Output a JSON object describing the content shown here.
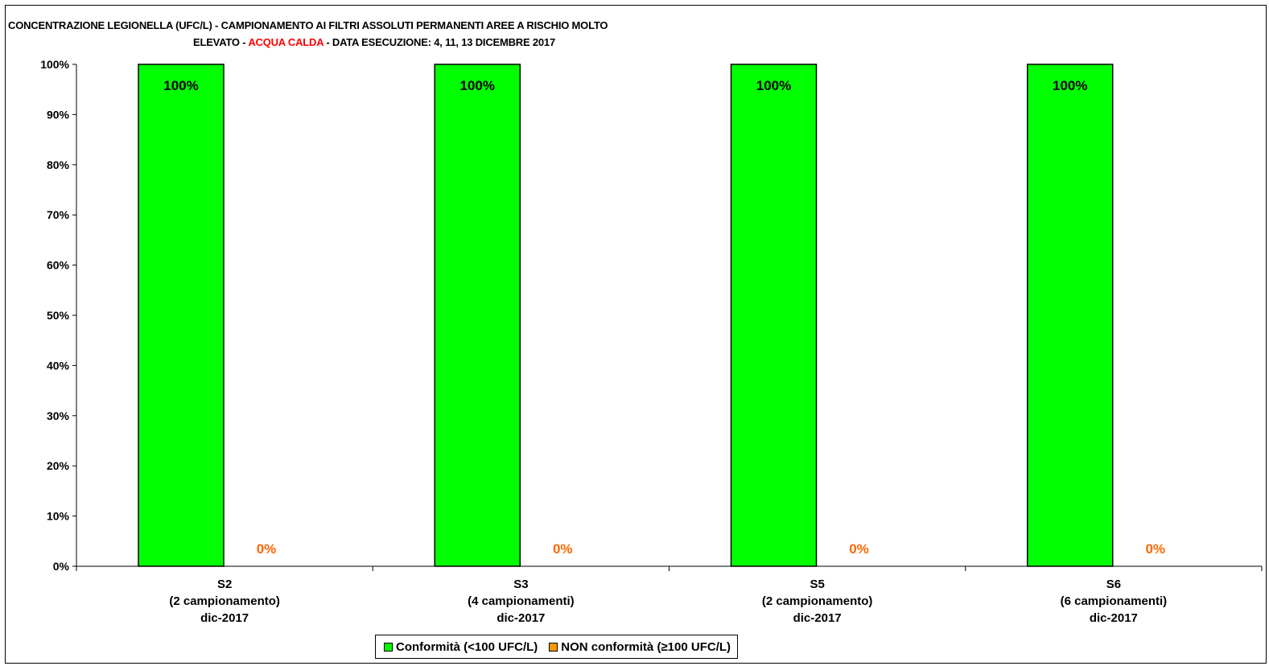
{
  "title": {
    "line1": "CONCENTRAZIONE LEGIONELLA (UFC/L) - CAMPIONAMENTO AI FILTRI ASSOLUTI PERMANENTI AREE A RISCHIO MOLTO",
    "line2_prefix": "ELEVATO - ",
    "line2_highlight": "ACQUA CALDA",
    "line2_suffix": " - DATA ESECUZIONE: 4, 11, 13 DICEMBRE 2017"
  },
  "colors": {
    "conforme": "#00ff00",
    "non_conforme": "#ff9900",
    "non_conforme_label": "#ff6600",
    "title_highlight": "#ff0000"
  },
  "chart_data": {
    "type": "bar",
    "categories": [
      [
        "S2",
        "(2 campionamento)",
        "dic-2017"
      ],
      [
        "S3",
        "(4 campionamenti)",
        "dic-2017"
      ],
      [
        "S5",
        "(2 campionamento)",
        "dic-2017"
      ],
      [
        "S6",
        "(6 campionamenti)",
        "dic-2017"
      ]
    ],
    "series": [
      {
        "name": "Conformità (<100 UFC/L)",
        "values": [
          100,
          100,
          100,
          100
        ],
        "labels": [
          "100%",
          "100%",
          "100%",
          "100%"
        ]
      },
      {
        "name": "NON conformità (≥100 UFC/L)",
        "values": [
          0,
          0,
          0,
          0
        ],
        "labels": [
          "0%",
          "0%",
          "0%",
          "0%"
        ]
      }
    ],
    "yticks": [
      "0%",
      "10%",
      "20%",
      "30%",
      "40%",
      "50%",
      "60%",
      "70%",
      "80%",
      "90%",
      "100%"
    ],
    "ylim": [
      0,
      100
    ],
    "grid": false,
    "legend_position": "bottom"
  }
}
